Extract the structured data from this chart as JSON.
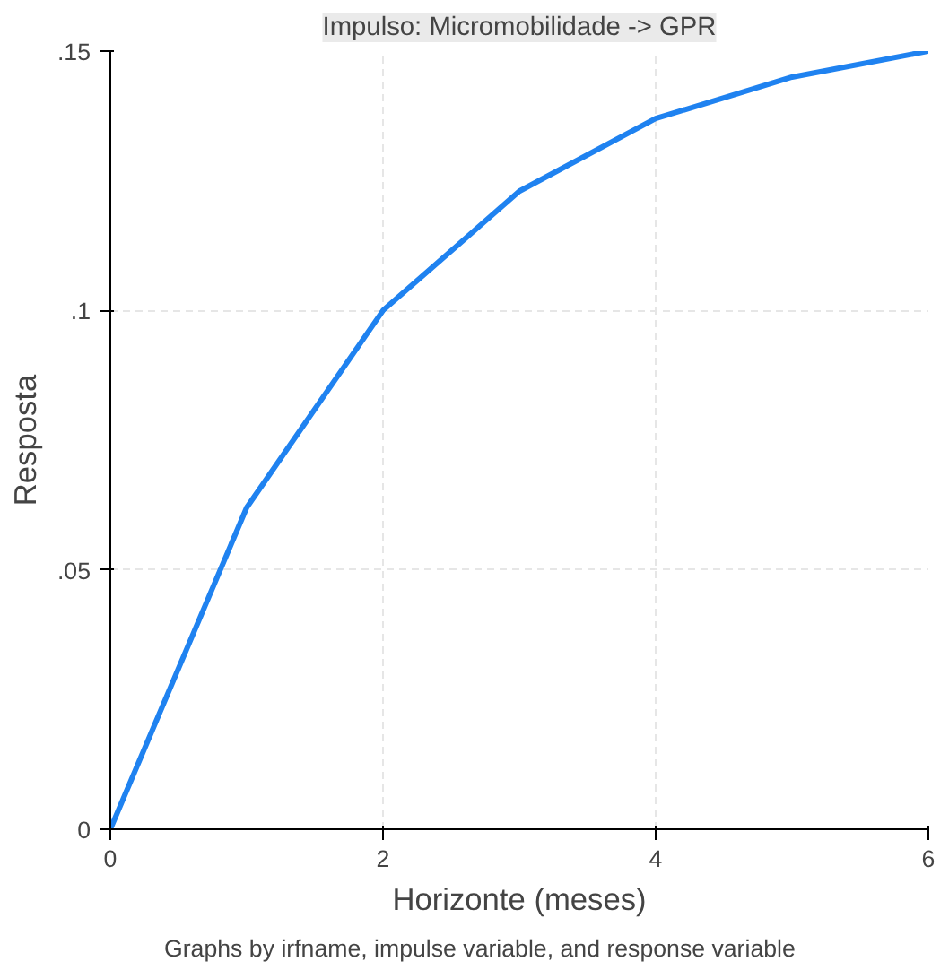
{
  "chart_data": {
    "type": "line",
    "title": "Impulso: Micromobilidade -> GPR",
    "xlabel": "Horizonte (meses)",
    "ylabel": "Resposta",
    "x": [
      0,
      1,
      2,
      3,
      4,
      5,
      6
    ],
    "series": [
      {
        "color": "#1f82f0",
        "values": [
          0,
          0.062,
          0.1,
          0.123,
          0.137,
          0.145,
          0.15
        ]
      }
    ],
    "xlim": [
      0,
      6
    ],
    "xticks": [
      0,
      2,
      4,
      6
    ],
    "ylim": [
      0,
      0.15
    ],
    "yticks": [
      {
        "value": 0,
        "label": "0"
      },
      {
        "value": 0.05,
        "label": ".05"
      },
      {
        "value": 0.1,
        "label": ".1"
      },
      {
        "value": 0.15,
        "label": ".15"
      }
    ],
    "grid": true,
    "line_style": "solid",
    "annotations": [
      "Graphs by irfname, impulse variable, and response variable"
    ]
  }
}
